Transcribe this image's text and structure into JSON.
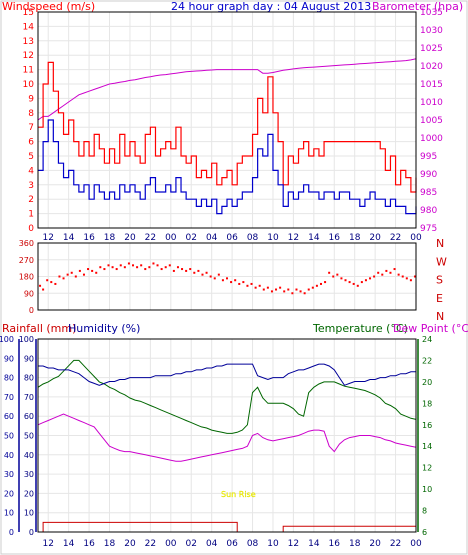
{
  "title": "24 hour graph day : 04 August 2013",
  "colors": {
    "wind": "#ff0000",
    "gust_dark": "#0000cc",
    "baro": "#cc00cc",
    "dir": "#ff0000",
    "rain": "#cc0000",
    "humidity": "#000099",
    "temp": "#006600",
    "dew": "#cc00cc",
    "axis": "#000000",
    "frame": "#cccccc",
    "sunrise": "#ffff00"
  },
  "hour_labels": [
    "12",
    "14",
    "16",
    "18",
    "20",
    "22",
    "00",
    "02",
    "04",
    "06",
    "08",
    "10",
    "12",
    "14",
    "16",
    "18",
    "20",
    "22",
    "00"
  ],
  "chart_data": [
    {
      "type": "line",
      "title": "24 hour graph day : 04 August 2013",
      "ylabel_left": "Windspeed (m/s)",
      "ylabel_right": "Barometer (hpa)",
      "ylim_left": [
        0,
        15
      ],
      "ylim_right": [
        975,
        1035
      ],
      "left_ticks": [
        "15",
        "14",
        "13",
        "12",
        "11",
        "10",
        "9",
        "8",
        "7",
        "6",
        "5",
        "4",
        "3",
        "2",
        "1",
        "0"
      ],
      "right_ticks": [
        "1035",
        "1030",
        "1025",
        "1020",
        "1015",
        "1010",
        "1005",
        "1000",
        "995",
        "990",
        "985",
        "980",
        "975"
      ],
      "hours": [
        11,
        11.5,
        12,
        12.5,
        13,
        13.5,
        14,
        14.5,
        15,
        15.5,
        16,
        16.5,
        17,
        17.5,
        18,
        18.5,
        19,
        19.5,
        20,
        20.5,
        21,
        21.5,
        22,
        22.5,
        23,
        23.5,
        24,
        24.5,
        25,
        25.5,
        26,
        26.5,
        27,
        27.5,
        28,
        28.5,
        29,
        29.5,
        30,
        30.5,
        31,
        31.5,
        32,
        32.5,
        33,
        33.5,
        34,
        34.5,
        35,
        35.5,
        36,
        36.5,
        37,
        37.5,
        38,
        38.5,
        39,
        39.5,
        40,
        40.5,
        41,
        41.5,
        42,
        42.5,
        43,
        43.5,
        44,
        44.5,
        45,
        45.5,
        46,
        46.5,
        47,
        47.5,
        48
      ],
      "series": [
        {
          "name": "gust",
          "values": [
            7,
            10,
            11.5,
            9.5,
            8,
            6.5,
            7.5,
            6,
            5,
            6,
            5,
            6.5,
            5.5,
            4.5,
            5.5,
            4.5,
            6.5,
            5,
            6,
            5,
            4.5,
            6.5,
            7,
            5,
            5.5,
            6,
            5.5,
            7,
            5,
            4.5,
            5,
            3.5,
            4,
            3.5,
            4.5,
            3,
            3.5,
            4,
            3,
            4.5,
            5,
            5,
            6.5,
            9,
            8,
            10.5,
            8,
            6,
            3,
            5,
            4.5,
            5.5,
            6,
            5,
            5.5,
            5,
            6,
            6,
            6,
            6,
            6,
            6,
            6,
            6,
            6,
            6,
            6,
            5.5,
            4,
            5,
            3,
            4,
            3.5,
            2.5,
            3.5
          ]
        },
        {
          "name": "wind",
          "values": [
            4,
            6,
            7.5,
            6,
            4.5,
            3.5,
            4,
            3,
            2.5,
            3,
            2,
            3,
            2.5,
            2,
            2.5,
            2,
            3,
            2.5,
            3,
            2.5,
            2,
            3,
            3.5,
            2.5,
            2.5,
            3,
            2.5,
            3.5,
            2.5,
            2,
            2,
            1.5,
            2,
            1.5,
            2,
            1,
            1.5,
            2,
            1.5,
            2,
            2.5,
            2.5,
            3.5,
            5.5,
            5,
            6.5,
            4,
            3,
            1.5,
            2.5,
            2,
            2.5,
            3,
            2.5,
            2.5,
            2,
            2.5,
            2.5,
            2,
            2.5,
            2.5,
            2,
            2,
            1.5,
            2,
            2.5,
            2,
            2,
            1.5,
            2,
            1.5,
            1.5,
            1,
            1,
            1.5
          ]
        },
        {
          "name": "barometer",
          "values": [
            1005,
            1006,
            1006,
            1007,
            1008,
            1009,
            1010,
            1011,
            1012,
            1012.5,
            1013,
            1013.5,
            1014,
            1014.5,
            1015,
            1015.2,
            1015.5,
            1015.7,
            1016,
            1016.2,
            1016.5,
            1016.8,
            1017,
            1017.3,
            1017.5,
            1017.6,
            1017.8,
            1018,
            1018.2,
            1018.4,
            1018.5,
            1018.6,
            1018.7,
            1018.8,
            1018.9,
            1019,
            1019,
            1019,
            1019,
            1019,
            1019,
            1019,
            1019,
            1019,
            1018,
            1018,
            1018.2,
            1018.5,
            1018.8,
            1019,
            1019.2,
            1019.4,
            1019.5,
            1019.6,
            1019.7,
            1019.8,
            1019.9,
            1020,
            1020.1,
            1020.2,
            1020.3,
            1020.4,
            1020.5,
            1020.6,
            1020.7,
            1020.8,
            1020.9,
            1021,
            1021.1,
            1021.2,
            1021.3,
            1021.4,
            1021.5,
            1021.7,
            1022
          ]
        }
      ]
    },
    {
      "type": "scatter",
      "ylabel_right": [
        "N",
        "W",
        "S",
        "E",
        "N"
      ],
      "ylim": [
        0,
        360
      ],
      "left_ticks": [
        "360",
        "270",
        "180",
        "90",
        "0"
      ],
      "x": [
        11.2,
        11.5,
        11.9,
        12.3,
        12.7,
        13.1,
        13.5,
        13.9,
        14.3,
        14.7,
        15.1,
        15.5,
        15.9,
        16.3,
        16.7,
        17.1,
        17.5,
        17.9,
        18.3,
        18.7,
        19.1,
        19.5,
        19.9,
        20.3,
        20.7,
        21.1,
        21.5,
        21.9,
        22.3,
        22.7,
        23.1,
        23.5,
        23.9,
        24.3,
        24.7,
        25.1,
        25.5,
        25.9,
        26.3,
        26.7,
        27.1,
        27.5,
        27.9,
        28.3,
        28.7,
        29.1,
        29.5,
        29.9,
        30.3,
        30.7,
        31.1,
        31.5,
        31.9,
        32.3,
        32.7,
        33.1,
        33.5,
        33.9,
        34.3,
        34.7,
        35.1,
        35.5,
        35.9,
        36.3,
        36.7,
        37.1,
        37.5,
        37.9,
        38.3,
        38.7,
        39.1,
        39.5,
        39.9,
        40.3,
        40.7,
        41.1,
        41.5,
        41.9,
        42.3,
        42.7,
        43.1,
        43.5,
        43.9,
        44.3,
        44.7,
        45.1,
        45.5,
        45.9,
        46.3,
        46.7,
        47.1,
        47.5,
        47.9
      ],
      "y": [
        130,
        110,
        160,
        150,
        140,
        180,
        170,
        190,
        200,
        180,
        210,
        190,
        220,
        210,
        200,
        230,
        220,
        240,
        230,
        220,
        240,
        230,
        250,
        240,
        230,
        240,
        220,
        230,
        250,
        240,
        220,
        230,
        240,
        210,
        230,
        220,
        210,
        220,
        200,
        210,
        190,
        200,
        180,
        170,
        190,
        160,
        170,
        150,
        160,
        140,
        150,
        130,
        140,
        120,
        130,
        110,
        120,
        100,
        110,
        120,
        100,
        110,
        90,
        110,
        100,
        90,
        110,
        120,
        130,
        140,
        150,
        200,
        180,
        190,
        170,
        160,
        150,
        140,
        130,
        150,
        160,
        170,
        180,
        200,
        190,
        210,
        200,
        220,
        190,
        180,
        170,
        160,
        180
      ]
    },
    {
      "type": "line",
      "ylabel_left": [
        "Rainfall (mm)",
        "Humidity (%)"
      ],
      "ylabel_right": [
        "Temperature (°C)",
        "Dew Point (°C)"
      ],
      "ylim_rain": [
        0,
        100
      ],
      "ylim_humidity": [
        0,
        100
      ],
      "ylim_temp": [
        6,
        24
      ],
      "rain_ticks": [
        "100",
        "90",
        "80",
        "70",
        "60",
        "50",
        "40",
        "30",
        "20",
        "10",
        "0"
      ],
      "humidity_ticks": [
        "100",
        "90",
        "80",
        "70",
        "60",
        "50",
        "40",
        "30",
        "20",
        "10",
        "0"
      ],
      "temp_ticks": [
        "24",
        "22",
        "20",
        "18",
        "16",
        "14",
        "12",
        "10",
        "8",
        "6"
      ],
      "annotation": "Sun Rise",
      "hours": [
        11,
        11.5,
        12,
        12.5,
        13,
        13.5,
        14,
        14.5,
        15,
        15.5,
        16,
        16.5,
        17,
        17.5,
        18,
        18.5,
        19,
        19.5,
        20,
        20.5,
        21,
        21.5,
        22,
        22.5,
        23,
        23.5,
        24,
        24.5,
        25,
        25.5,
        26,
        26.5,
        27,
        27.5,
        28,
        28.5,
        29,
        29.5,
        30,
        30.5,
        31,
        31.5,
        32,
        32.5,
        33,
        33.5,
        34,
        34.5,
        35,
        35.5,
        36,
        36.5,
        37,
        37.5,
        38,
        38.5,
        39,
        39.5,
        40,
        40.5,
        41,
        41.5,
        42,
        42.5,
        43,
        43.5,
        44,
        44.5,
        45,
        45.5,
        46,
        46.5,
        47,
        47.5,
        48
      ],
      "series": [
        {
          "name": "humidity",
          "values": [
            86,
            86,
            85,
            85,
            84,
            84,
            84,
            83,
            82,
            80,
            78,
            77,
            76,
            77,
            78,
            78,
            79,
            79,
            80,
            80,
            80,
            80,
            80,
            81,
            81,
            81,
            81,
            82,
            82,
            83,
            83,
            84,
            84,
            85,
            85,
            86,
            86,
            87,
            87,
            87,
            87,
            87,
            87,
            81,
            80,
            79,
            80,
            80,
            80,
            82,
            83,
            84,
            84,
            85,
            86,
            87,
            87,
            86,
            84,
            80,
            76,
            77,
            78,
            78,
            78,
            79,
            79,
            80,
            80,
            81,
            81,
            82,
            82,
            83,
            83
          ]
        },
        {
          "name": "temperature",
          "values": [
            19.5,
            19.8,
            20,
            20.3,
            20.5,
            21,
            21.5,
            22,
            22,
            21.5,
            21,
            20.5,
            20,
            19.8,
            19.5,
            19.3,
            19,
            18.8,
            18.5,
            18.3,
            18.2,
            18,
            17.8,
            17.6,
            17.4,
            17.2,
            17,
            16.8,
            16.6,
            16.4,
            16.2,
            16,
            15.8,
            15.7,
            15.5,
            15.4,
            15.3,
            15.2,
            15.2,
            15.3,
            15.5,
            16,
            19,
            19.5,
            18.5,
            18,
            18,
            18,
            18,
            17.8,
            17.5,
            17,
            16.8,
            19,
            19.5,
            19.8,
            20,
            20,
            20,
            19.8,
            19.6,
            19.5,
            19.4,
            19.3,
            19.2,
            19,
            18.8,
            18.5,
            18,
            17.8,
            17.5,
            17,
            16.8,
            16.6,
            16.5
          ]
        },
        {
          "name": "dew_point",
          "values": [
            16,
            16.2,
            16.4,
            16.6,
            16.8,
            17,
            16.8,
            16.6,
            16.4,
            16.2,
            16,
            15.8,
            15.2,
            14.6,
            14,
            13.8,
            13.6,
            13.5,
            13.5,
            13.4,
            13.3,
            13.2,
            13.1,
            13,
            12.9,
            12.8,
            12.7,
            12.6,
            12.6,
            12.7,
            12.8,
            12.9,
            13,
            13.1,
            13.2,
            13.3,
            13.4,
            13.5,
            13.6,
            13.7,
            13.8,
            14,
            15,
            15.2,
            14.8,
            14.6,
            14.5,
            14.6,
            14.7,
            14.8,
            14.9,
            15,
            15.2,
            15.4,
            15.5,
            15.5,
            15.4,
            14,
            13.5,
            14.2,
            14.6,
            14.8,
            14.9,
            15,
            15,
            15,
            14.9,
            14.8,
            14.6,
            14.5,
            14.3,
            14.2,
            14.1,
            14,
            13.9
          ]
        },
        {
          "name": "rainfall",
          "values": [
            0,
            5,
            5,
            5,
            5,
            5,
            5,
            5,
            5,
            5,
            5,
            5,
            5,
            5,
            5,
            5,
            5,
            5,
            5,
            5,
            5,
            5,
            5,
            5,
            5,
            5,
            5,
            5,
            5,
            5,
            5,
            5,
            5,
            5,
            5,
            5,
            5,
            5,
            5,
            0,
            0,
            0,
            0,
            0,
            0,
            0,
            0,
            0,
            3,
            3,
            3,
            3,
            3,
            3,
            3,
            3,
            3,
            3,
            3,
            3,
            3,
            3,
            3,
            3,
            3,
            3,
            3,
            3,
            3,
            3,
            3,
            3,
            3,
            3,
            3
          ]
        }
      ]
    }
  ]
}
